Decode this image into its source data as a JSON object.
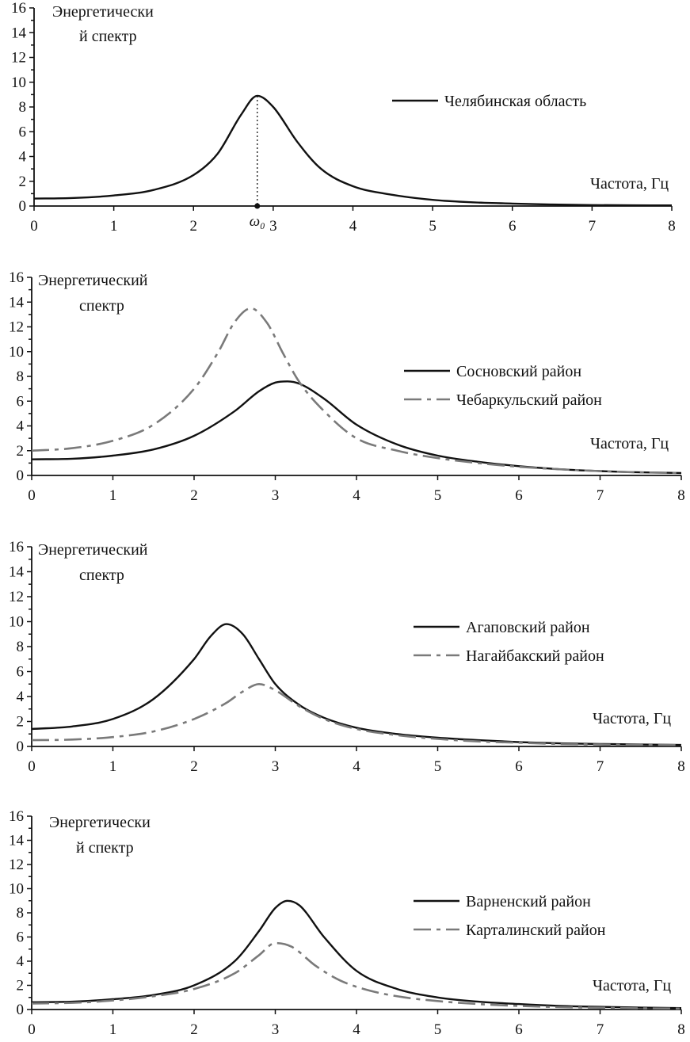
{
  "chart_data": [
    {
      "type": "line",
      "ylabel_lines": [
        "Энергетически",
        "й спектр"
      ],
      "xlabel": "Частота, Гц",
      "xlim": [
        0,
        8
      ],
      "ylim": [
        0,
        16
      ],
      "xticks": [
        "0",
        "1",
        "2",
        "3",
        "4",
        "5",
        "6",
        "7",
        "8"
      ],
      "yticks": [
        "0",
        "2",
        "4",
        "6",
        "8",
        "10",
        "12",
        "14",
        "16"
      ],
      "annotation": {
        "label": "ω₀",
        "x": 2.8
      },
      "series": [
        {
          "name": "Челябинская область",
          "style": "solid",
          "x": [
            0,
            0.5,
            1,
            1.5,
            2,
            2.3,
            2.6,
            2.8,
            3,
            3.3,
            3.6,
            4,
            4.5,
            5,
            5.5,
            6,
            6.5,
            7,
            7.5,
            8
          ],
          "y": [
            0.6,
            0.65,
            0.85,
            1.3,
            2.5,
            4.2,
            7.4,
            8.9,
            8.0,
            5.2,
            3.0,
            1.6,
            0.9,
            0.5,
            0.3,
            0.2,
            0.12,
            0.08,
            0.06,
            0.05
          ]
        }
      ]
    },
    {
      "type": "line",
      "ylabel_lines": [
        "Энергетический",
        "спектр"
      ],
      "xlabel": "Частота, Гц",
      "xlim": [
        0,
        8
      ],
      "ylim": [
        0,
        16
      ],
      "xticks": [
        "0",
        "1",
        "2",
        "3",
        "4",
        "5",
        "6",
        "7",
        "8"
      ],
      "yticks": [
        "0",
        "2",
        "4",
        "6",
        "8",
        "10",
        "12",
        "14",
        "16"
      ],
      "series": [
        {
          "name": "Сосновский район",
          "style": "solid",
          "x": [
            0,
            0.5,
            1,
            1.5,
            2,
            2.5,
            2.8,
            3,
            3.15,
            3.3,
            3.6,
            4,
            4.5,
            5,
            5.5,
            6,
            6.5,
            7,
            7.5,
            8
          ],
          "y": [
            1.3,
            1.35,
            1.6,
            2.1,
            3.2,
            5.2,
            6.8,
            7.5,
            7.6,
            7.4,
            6.2,
            4.1,
            2.5,
            1.6,
            1.1,
            0.75,
            0.5,
            0.35,
            0.25,
            0.2
          ]
        },
        {
          "name": "Чебаркульский район",
          "style": "dashed",
          "x": [
            0,
            0.5,
            1,
            1.5,
            2,
            2.3,
            2.5,
            2.7,
            2.9,
            3.1,
            3.3,
            3.6,
            4,
            4.5,
            5,
            5.5,
            6,
            6.5,
            7,
            7.5,
            8
          ],
          "y": [
            2.0,
            2.2,
            2.8,
            4.1,
            7.0,
            10.0,
            12.4,
            13.5,
            12.3,
            9.8,
            7.5,
            5.2,
            3.0,
            2.0,
            1.4,
            1.0,
            0.7,
            0.5,
            0.35,
            0.25,
            0.2
          ]
        }
      ]
    },
    {
      "type": "line",
      "ylabel_lines": [
        "Энергетический",
        "спектр"
      ],
      "xlabel": "Частота, Гц",
      "xlim": [
        0,
        8
      ],
      "ylim": [
        0,
        16
      ],
      "xticks": [
        "0",
        "1",
        "2",
        "3",
        "4",
        "5",
        "6",
        "7",
        "8"
      ],
      "yticks": [
        "0",
        "2",
        "4",
        "6",
        "8",
        "10",
        "12",
        "14",
        "16"
      ],
      "series": [
        {
          "name": "Агаповский район",
          "style": "solid",
          "x": [
            0,
            0.5,
            1,
            1.5,
            2,
            2.2,
            2.4,
            2.6,
            2.8,
            3,
            3.3,
            3.6,
            4,
            4.5,
            5,
            5.5,
            6,
            6.5,
            7,
            7.5,
            8
          ],
          "y": [
            1.4,
            1.6,
            2.2,
            3.8,
            7.0,
            8.8,
            9.8,
            9.0,
            7.0,
            5.0,
            3.3,
            2.3,
            1.5,
            1.0,
            0.7,
            0.5,
            0.35,
            0.25,
            0.2,
            0.15,
            0.12
          ]
        },
        {
          "name": "Нагайбакский район",
          "style": "dashed",
          "x": [
            0,
            0.5,
            1,
            1.5,
            2,
            2.4,
            2.6,
            2.8,
            3,
            3.3,
            3.6,
            4,
            4.5,
            5,
            5.5,
            6,
            6.5,
            7,
            7.5,
            8
          ],
          "y": [
            0.5,
            0.55,
            0.75,
            1.2,
            2.2,
            3.5,
            4.4,
            5.0,
            4.5,
            3.2,
            2.2,
            1.4,
            0.9,
            0.6,
            0.4,
            0.3,
            0.2,
            0.15,
            0.12,
            0.1
          ]
        }
      ]
    },
    {
      "type": "line",
      "ylabel_lines": [
        "Энергетически",
        "й спектр"
      ],
      "xlabel": "Частота, Гц",
      "xlim": [
        0,
        8
      ],
      "ylim": [
        0,
        16
      ],
      "xticks": [
        "0",
        "1",
        "2",
        "3",
        "4",
        "5",
        "6",
        "7",
        "8"
      ],
      "yticks": [
        "0",
        "2",
        "4",
        "6",
        "8",
        "10",
        "12",
        "14",
        "16"
      ],
      "series": [
        {
          "name": "Варненский район",
          "style": "solid",
          "x": [
            0,
            0.5,
            1,
            1.5,
            2,
            2.5,
            2.8,
            3,
            3.15,
            3.3,
            3.6,
            4,
            4.5,
            5,
            5.5,
            6,
            6.5,
            7,
            7.5,
            8
          ],
          "y": [
            0.6,
            0.65,
            0.85,
            1.2,
            2.0,
            4.0,
            6.5,
            8.4,
            9.0,
            8.6,
            6.0,
            3.2,
            1.7,
            1.0,
            0.65,
            0.45,
            0.3,
            0.22,
            0.16,
            0.12
          ]
        },
        {
          "name": "Карталинский район",
          "style": "dashed",
          "x": [
            0,
            0.5,
            1,
            1.5,
            2,
            2.5,
            2.8,
            3,
            3.2,
            3.5,
            3.8,
            4.2,
            4.6,
            5,
            5.5,
            6,
            6.5,
            7,
            7.5,
            8
          ],
          "y": [
            0.5,
            0.55,
            0.75,
            1.1,
            1.7,
            3.0,
            4.5,
            5.5,
            5.2,
            3.6,
            2.4,
            1.5,
            1.0,
            0.7,
            0.45,
            0.3,
            0.2,
            0.15,
            0.1,
            0.08
          ]
        }
      ]
    }
  ]
}
